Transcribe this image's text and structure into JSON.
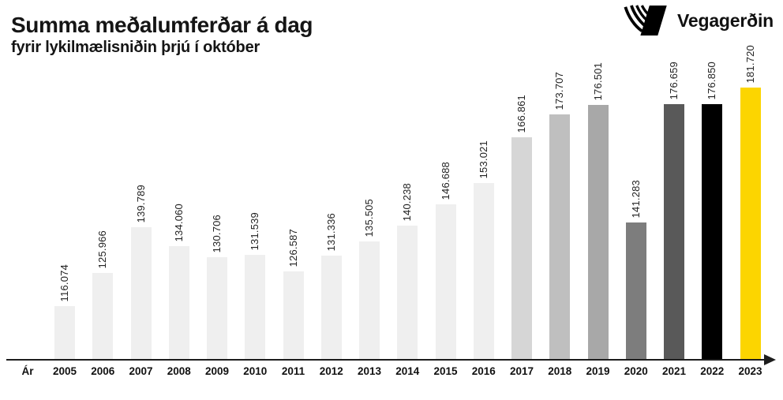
{
  "chart_data": {
    "type": "bar",
    "title": "Summa meðalumferðar á dag",
    "subtitle": "fyrir lykilmælisniðin þrjú í október",
    "x_axis_label": "Ár",
    "categories": [
      "2005",
      "2006",
      "2007",
      "2008",
      "2009",
      "2010",
      "2011",
      "2012",
      "2013",
      "2014",
      "2015",
      "2016",
      "2017",
      "2018",
      "2019",
      "2020",
      "2021",
      "2022",
      "2023"
    ],
    "values": [
      116074,
      125966,
      139789,
      134060,
      130706,
      131539,
      126587,
      131336,
      135505,
      140238,
      146688,
      153021,
      166861,
      173707,
      176501,
      141283,
      176659,
      176850,
      181720
    ],
    "value_labels": [
      "116.074",
      "125.966",
      "139.789",
      "134.060",
      "130.706",
      "131.539",
      "126.587",
      "131.336",
      "135.505",
      "140.238",
      "146.688",
      "153.021",
      "166.861",
      "173.707",
      "176.501",
      "141.283",
      "176.659",
      "176.850",
      "181.720"
    ],
    "bar_colors": [
      "#efefef",
      "#efefef",
      "#efefef",
      "#efefef",
      "#efefef",
      "#efefef",
      "#efefef",
      "#efefef",
      "#efefef",
      "#efefef",
      "#efefef",
      "#efefef",
      "#d6d6d6",
      "#bfbfbf",
      "#a8a8a8",
      "#7d7d7d",
      "#595959",
      "#000000",
      "#fcd500"
    ],
    "ylim": [
      100000,
      181720
    ],
    "grid": false,
    "legend": "none"
  },
  "logo": {
    "text": "Vegagerðin"
  },
  "colors": {
    "accent_yellow": "#fcd500",
    "axis": "#1d1d1d",
    "text": "#151515"
  }
}
